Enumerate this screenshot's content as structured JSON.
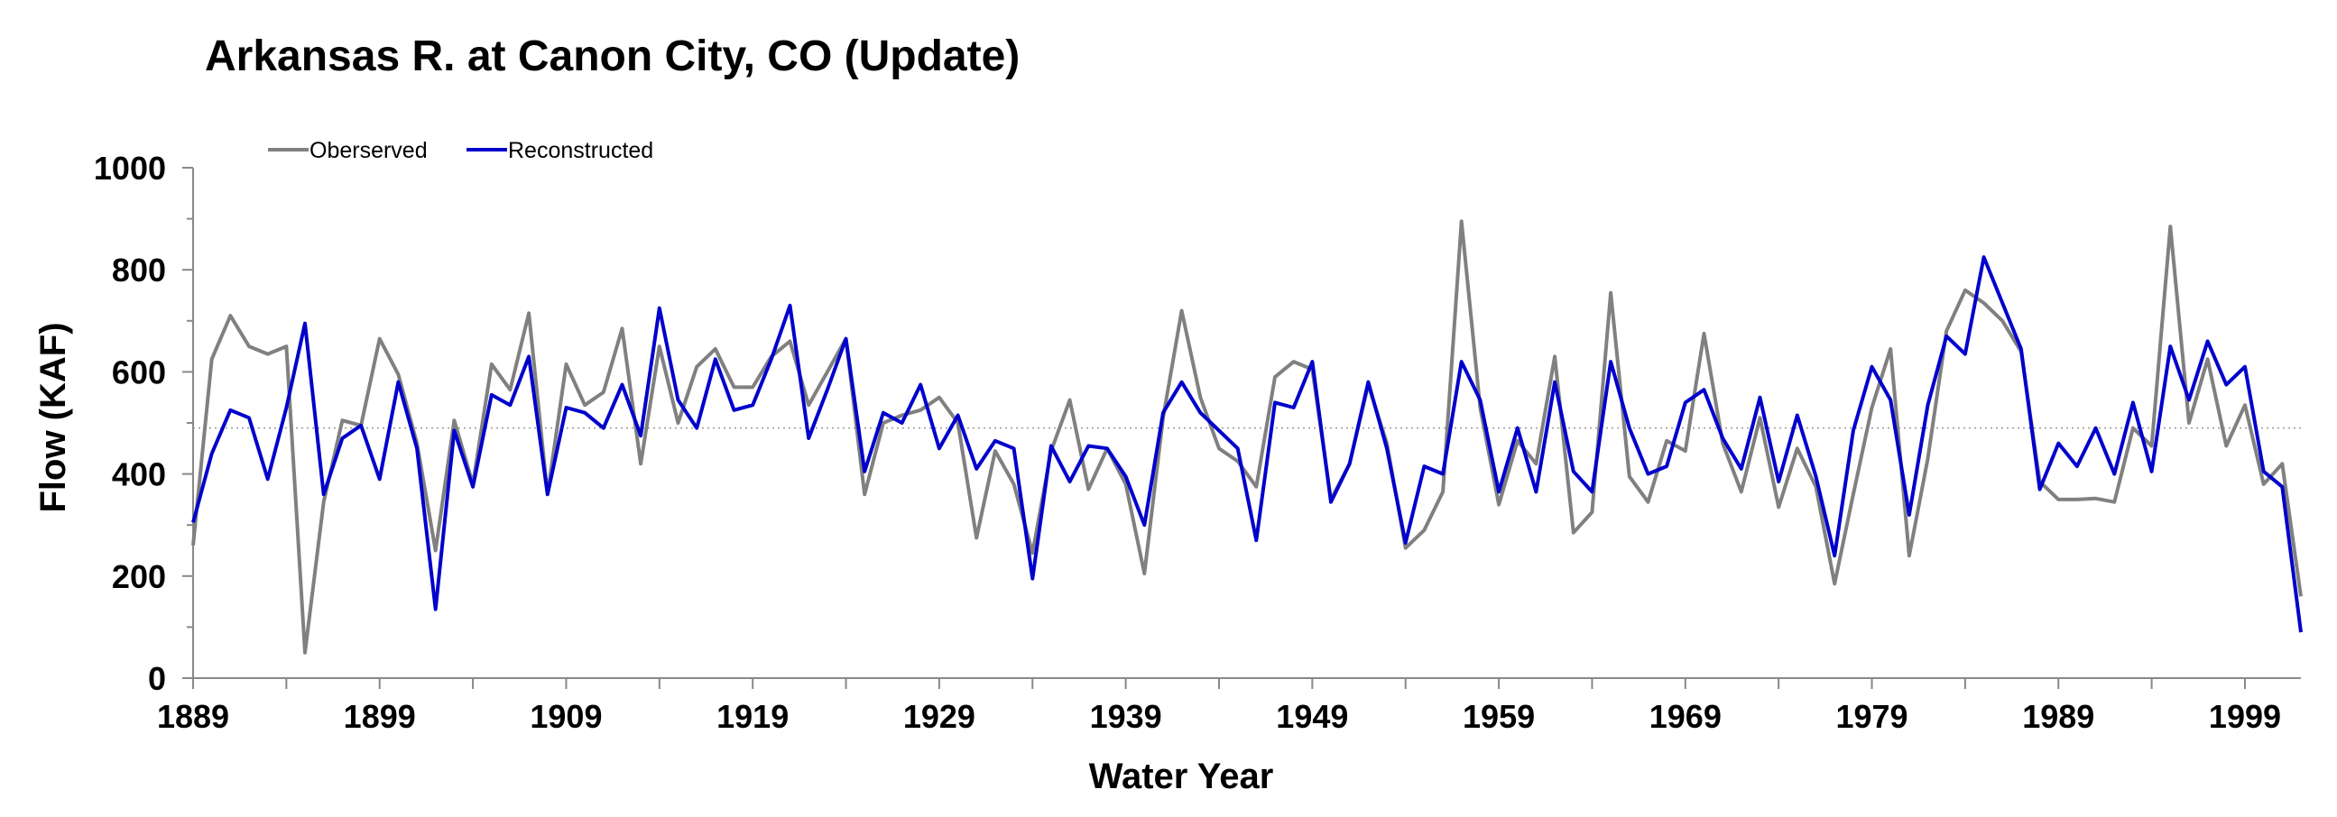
{
  "chart_data": {
    "type": "line",
    "title": "Arkansas R. at Canon City, CO (Update)",
    "xlabel": "Water Year",
    "ylabel": "Flow (KAF)",
    "xlim": [
      1889,
      2002
    ],
    "ylim": [
      0,
      1000
    ],
    "x_ticks": [
      "1889",
      "1899",
      "1909",
      "1919",
      "1929",
      "1939",
      "1949",
      "1959",
      "1969",
      "1979",
      "1989",
      "1999"
    ],
    "y_ticks": [
      "0",
      "200",
      "400",
      "600",
      "800",
      "1000"
    ],
    "grid": false,
    "reference_line": 490,
    "legend_position": "top-left",
    "start_year": 1889,
    "series": [
      {
        "name": "Oberserved",
        "color": "#808080",
        "values": [
          260,
          625,
          710,
          650,
          635,
          650,
          50,
          345,
          505,
          495,
          665,
          595,
          460,
          250,
          505,
          380,
          615,
          565,
          715,
          360,
          615,
          535,
          560,
          685,
          420,
          650,
          500,
          610,
          645,
          570,
          570,
          630,
          660,
          535,
          600,
          665,
          360,
          500,
          515,
          525,
          550,
          500,
          275,
          445,
          380,
          245,
          445,
          545,
          370,
          450,
          380,
          205,
          510,
          720,
          550,
          450,
          425,
          375,
          590,
          620,
          605,
          350,
          420,
          575,
          460,
          255,
          290,
          365,
          895,
          530,
          340,
          465,
          420,
          630,
          285,
          325,
          755,
          395,
          345,
          465,
          445,
          675,
          460,
          365,
          510,
          335,
          450,
          375,
          185,
          360,
          530,
          645,
          240,
          430,
          680,
          760,
          735,
          700,
          640,
          385,
          350,
          350,
          352,
          345,
          490,
          455,
          885,
          500,
          625,
          455,
          535,
          380,
          420,
          160
        ]
      },
      {
        "name": "Reconstructed",
        "color": "#0000cc",
        "values": [
          305,
          440,
          525,
          510,
          390,
          530,
          695,
          360,
          470,
          495,
          390,
          580,
          450,
          135,
          485,
          375,
          555,
          535,
          630,
          360,
          530,
          520,
          490,
          575,
          475,
          725,
          545,
          490,
          625,
          525,
          535,
          625,
          730,
          470,
          565,
          665,
          405,
          520,
          500,
          575,
          450,
          515,
          410,
          465,
          450,
          195,
          455,
          385,
          455,
          450,
          395,
          300,
          520,
          580,
          520,
          485,
          450,
          270,
          540,
          530,
          620,
          345,
          420,
          580,
          450,
          265,
          415,
          400,
          620,
          545,
          365,
          490,
          365,
          580,
          405,
          365,
          620,
          490,
          400,
          415,
          540,
          565,
          470,
          410,
          550,
          385,
          515,
          395,
          240,
          485,
          610,
          545,
          320,
          535,
          670,
          635,
          825,
          735,
          645,
          370,
          460,
          415,
          490,
          400,
          540,
          405,
          650,
          545,
          660,
          575,
          610,
          405,
          375,
          90
        ]
      }
    ]
  }
}
